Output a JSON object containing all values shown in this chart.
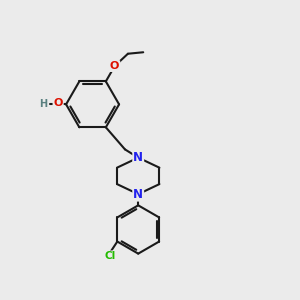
{
  "background_color": "#ebebeb",
  "bond_color": "#1a1a1a",
  "bond_width": 1.5,
  "atom_colors": {
    "O_red": "#dd1100",
    "O_dark": "#cc2200",
    "N": "#2222ee",
    "Cl": "#22bb00",
    "H": "#5a8080",
    "C": "#1a1a1a"
  },
  "figsize": [
    3.0,
    3.0
  ],
  "dpi": 100
}
